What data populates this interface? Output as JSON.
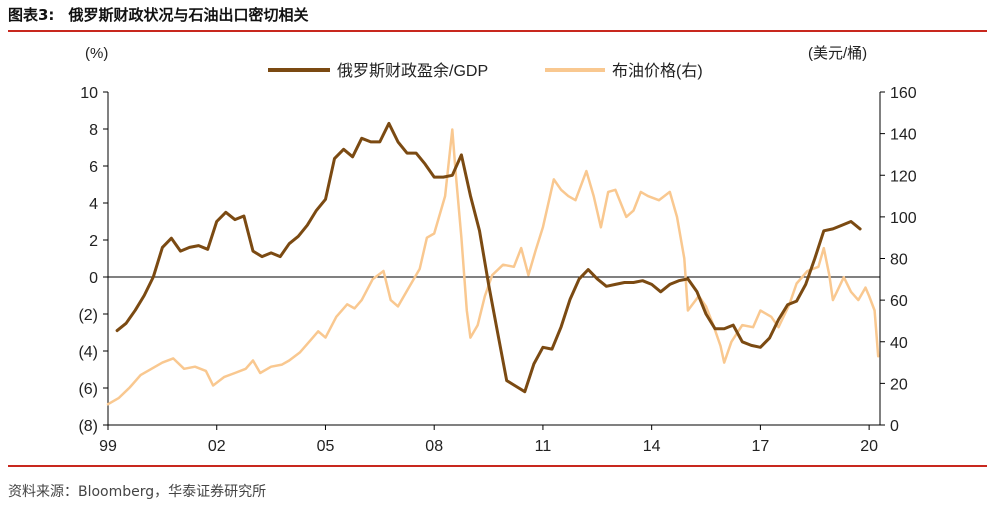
{
  "figure": {
    "label": "图表3:",
    "title": "俄罗斯财政状况与石油出口密切相关",
    "source": "资料来源：Bloomberg，华泰证券研究所"
  },
  "chart_data": {
    "type": "line",
    "left_axis": {
      "unit": "(%)",
      "ylim": [
        -8,
        10
      ],
      "ticks": [
        10,
        8,
        6,
        4,
        2,
        0,
        -2,
        -4,
        -6,
        -8
      ],
      "tick_labels": [
        "10",
        "8",
        "6",
        "4",
        "2",
        "0",
        "(2)",
        "(4)",
        "(6)",
        "(8)"
      ]
    },
    "right_axis": {
      "unit": "(美元/桶)",
      "ylim": [
        0,
        160
      ],
      "ticks": [
        160,
        140,
        120,
        100,
        80,
        60,
        40,
        20,
        0
      ],
      "tick_labels": [
        "160",
        "140",
        "120",
        "100",
        "80",
        "60",
        "40",
        "20",
        "0"
      ]
    },
    "x_axis": {
      "range": [
        1999.0,
        2020.3
      ],
      "ticks": [
        1999,
        2002,
        2005,
        2008,
        2011,
        2014,
        2017,
        2020
      ],
      "tick_labels": [
        "99",
        "02",
        "05",
        "08",
        "11",
        "14",
        "17",
        "20"
      ]
    },
    "legend_placement": "top-center",
    "series": [
      {
        "name": "俄罗斯财政盈余/GDP",
        "axis": "left",
        "color": "#7b4a12",
        "points": [
          [
            1999.25,
            -2.9
          ],
          [
            1999.5,
            -2.5
          ],
          [
            1999.75,
            -1.8
          ],
          [
            2000.0,
            -1.0
          ],
          [
            2000.25,
            0.0
          ],
          [
            2000.5,
            1.6
          ],
          [
            2000.75,
            2.1
          ],
          [
            2001.0,
            1.4
          ],
          [
            2001.25,
            1.6
          ],
          [
            2001.5,
            1.7
          ],
          [
            2001.75,
            1.5
          ],
          [
            2002.0,
            3.0
          ],
          [
            2002.25,
            3.5
          ],
          [
            2002.5,
            3.1
          ],
          [
            2002.75,
            3.3
          ],
          [
            2003.0,
            1.4
          ],
          [
            2003.25,
            1.1
          ],
          [
            2003.5,
            1.3
          ],
          [
            2003.75,
            1.1
          ],
          [
            2004.0,
            1.8
          ],
          [
            2004.25,
            2.2
          ],
          [
            2004.5,
            2.8
          ],
          [
            2004.75,
            3.6
          ],
          [
            2005.0,
            4.2
          ],
          [
            2005.25,
            6.4
          ],
          [
            2005.5,
            6.9
          ],
          [
            2005.75,
            6.5
          ],
          [
            2006.0,
            7.5
          ],
          [
            2006.25,
            7.3
          ],
          [
            2006.5,
            7.3
          ],
          [
            2006.75,
            8.3
          ],
          [
            2007.0,
            7.3
          ],
          [
            2007.25,
            6.7
          ],
          [
            2007.5,
            6.7
          ],
          [
            2007.75,
            6.1
          ],
          [
            2008.0,
            5.4
          ],
          [
            2008.25,
            5.4
          ],
          [
            2008.5,
            5.5
          ],
          [
            2008.75,
            6.6
          ],
          [
            2009.0,
            4.4
          ],
          [
            2009.25,
            2.5
          ],
          [
            2009.5,
            -0.4
          ],
          [
            2009.75,
            -3.0
          ],
          [
            2010.0,
            -5.6
          ],
          [
            2010.25,
            -5.9
          ],
          [
            2010.5,
            -6.2
          ],
          [
            2010.75,
            -4.7
          ],
          [
            2011.0,
            -3.8
          ],
          [
            2011.25,
            -3.9
          ],
          [
            2011.5,
            -2.7
          ],
          [
            2011.75,
            -1.2
          ],
          [
            2012.0,
            -0.1
          ],
          [
            2012.25,
            0.4
          ],
          [
            2012.5,
            -0.1
          ],
          [
            2012.75,
            -0.5
          ],
          [
            2013.0,
            -0.4
          ],
          [
            2013.25,
            -0.3
          ],
          [
            2013.5,
            -0.3
          ],
          [
            2013.75,
            -0.2
          ],
          [
            2014.0,
            -0.4
          ],
          [
            2014.25,
            -0.8
          ],
          [
            2014.5,
            -0.4
          ],
          [
            2014.75,
            -0.2
          ],
          [
            2015.0,
            -0.1
          ],
          [
            2015.25,
            -0.8
          ],
          [
            2015.5,
            -2.0
          ],
          [
            2015.75,
            -2.8
          ],
          [
            2016.0,
            -2.8
          ],
          [
            2016.25,
            -2.6
          ],
          [
            2016.5,
            -3.5
          ],
          [
            2016.75,
            -3.7
          ],
          [
            2017.0,
            -3.8
          ],
          [
            2017.25,
            -3.3
          ],
          [
            2017.5,
            -2.3
          ],
          [
            2017.75,
            -1.5
          ],
          [
            2018.0,
            -1.3
          ],
          [
            2018.25,
            -0.4
          ],
          [
            2018.5,
            1.0
          ],
          [
            2018.75,
            2.5
          ],
          [
            2019.0,
            2.6
          ],
          [
            2019.25,
            2.8
          ],
          [
            2019.5,
            3.0
          ],
          [
            2019.75,
            2.6
          ]
        ]
      },
      {
        "name": "布油价格(右)",
        "axis": "right",
        "color": "#f9c890",
        "points": [
          [
            1999.0,
            10
          ],
          [
            1999.3,
            13
          ],
          [
            1999.6,
            18
          ],
          [
            1999.9,
            24
          ],
          [
            2000.2,
            27
          ],
          [
            2000.5,
            30
          ],
          [
            2000.8,
            32
          ],
          [
            2001.1,
            27
          ],
          [
            2001.4,
            28
          ],
          [
            2001.7,
            26
          ],
          [
            2001.9,
            19
          ],
          [
            2002.2,
            23
          ],
          [
            2002.5,
            25
          ],
          [
            2002.8,
            27
          ],
          [
            2003.0,
            31
          ],
          [
            2003.2,
            25
          ],
          [
            2003.5,
            28
          ],
          [
            2003.8,
            29
          ],
          [
            2004.0,
            31
          ],
          [
            2004.3,
            35
          ],
          [
            2004.6,
            41
          ],
          [
            2004.8,
            45
          ],
          [
            2005.0,
            42
          ],
          [
            2005.3,
            52
          ],
          [
            2005.6,
            58
          ],
          [
            2005.8,
            56
          ],
          [
            2006.0,
            60
          ],
          [
            2006.3,
            70
          ],
          [
            2006.6,
            74
          ],
          [
            2006.8,
            60
          ],
          [
            2007.0,
            57
          ],
          [
            2007.3,
            66
          ],
          [
            2007.6,
            75
          ],
          [
            2007.8,
            90
          ],
          [
            2008.0,
            92
          ],
          [
            2008.3,
            110
          ],
          [
            2008.5,
            142
          ],
          [
            2008.6,
            120
          ],
          [
            2008.75,
            90
          ],
          [
            2008.9,
            55
          ],
          [
            2009.0,
            42
          ],
          [
            2009.2,
            48
          ],
          [
            2009.4,
            62
          ],
          [
            2009.6,
            72
          ],
          [
            2009.9,
            77
          ],
          [
            2010.2,
            76
          ],
          [
            2010.4,
            85
          ],
          [
            2010.6,
            72
          ],
          [
            2010.8,
            84
          ],
          [
            2011.0,
            95
          ],
          [
            2011.3,
            118
          ],
          [
            2011.5,
            113
          ],
          [
            2011.7,
            110
          ],
          [
            2011.9,
            108
          ],
          [
            2012.2,
            122
          ],
          [
            2012.4,
            110
          ],
          [
            2012.6,
            95
          ],
          [
            2012.8,
            112
          ],
          [
            2013.0,
            113
          ],
          [
            2013.3,
            100
          ],
          [
            2013.5,
            103
          ],
          [
            2013.7,
            112
          ],
          [
            2013.9,
            110
          ],
          [
            2014.2,
            108
          ],
          [
            2014.5,
            112
          ],
          [
            2014.7,
            100
          ],
          [
            2014.9,
            80
          ],
          [
            2015.0,
            55
          ],
          [
            2015.3,
            62
          ],
          [
            2015.5,
            57
          ],
          [
            2015.7,
            48
          ],
          [
            2015.9,
            38
          ],
          [
            2016.0,
            30
          ],
          [
            2016.2,
            40
          ],
          [
            2016.5,
            48
          ],
          [
            2016.8,
            47
          ],
          [
            2017.0,
            55
          ],
          [
            2017.3,
            52
          ],
          [
            2017.5,
            47
          ],
          [
            2017.8,
            58
          ],
          [
            2018.0,
            68
          ],
          [
            2018.3,
            74
          ],
          [
            2018.6,
            76
          ],
          [
            2018.75,
            85
          ],
          [
            2018.9,
            72
          ],
          [
            2019.0,
            60
          ],
          [
            2019.3,
            71
          ],
          [
            2019.5,
            64
          ],
          [
            2019.7,
            60
          ],
          [
            2019.9,
            66
          ],
          [
            2020.0,
            62
          ],
          [
            2020.15,
            55
          ],
          [
            2020.25,
            33
          ]
        ]
      }
    ]
  }
}
